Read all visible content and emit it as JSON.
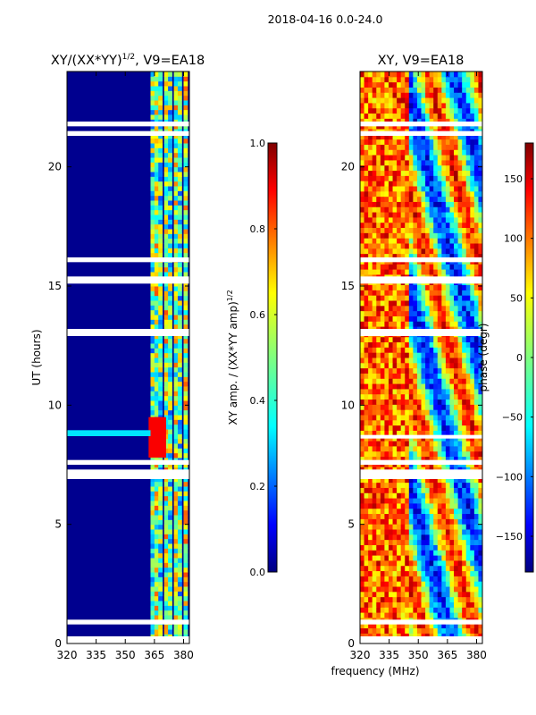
{
  "figure": {
    "suptitle": "2018-04-16 0.0-24.0",
    "shared_xlabel": "frequency (MHz)"
  },
  "chart_data": [
    {
      "type": "heatmap",
      "title": "XY/(XX*YY)",
      "title_sup": "1/2",
      "title_suffix": ", V9=EA18",
      "xlabel": "",
      "ylabel": "UT (hours)",
      "xlim": [
        320,
        383
      ],
      "ylim": [
        0,
        24
      ],
      "xticks": [
        320,
        335,
        350,
        365,
        380
      ],
      "yticks": [
        0,
        5,
        10,
        15,
        20
      ],
      "colorbar": {
        "label": "XY amp. / (XX*YY amp)",
        "label_sup": "1/2",
        "range": [
          0.0,
          1.0
        ],
        "ticks": [
          "0.0",
          "0.2",
          "0.4",
          "0.6",
          "0.8",
          "1.0"
        ],
        "tick_values": [
          0.0,
          0.2,
          0.4,
          0.6,
          0.8,
          1.0
        ],
        "colormap": "jet"
      },
      "flagged_ut_bands": [
        [
          0.0,
          0.3
        ],
        [
          0.8,
          1.0
        ],
        [
          6.9,
          7.3
        ],
        [
          7.5,
          7.7
        ],
        [
          12.9,
          13.2
        ],
        [
          15.1,
          15.4
        ],
        [
          16.0,
          16.2
        ],
        [
          21.3,
          21.5
        ],
        [
          21.7,
          21.9
        ]
      ]
    },
    {
      "type": "heatmap",
      "title": "XY, V9=EA18",
      "xlabel": "frequency (MHz)",
      "ylabel": "",
      "xlim": [
        320,
        383
      ],
      "ylim": [
        0,
        24
      ],
      "xticks": [
        320,
        335,
        350,
        365,
        380
      ],
      "yticks": [
        0,
        5,
        10,
        15,
        20
      ],
      "colorbar": {
        "label": "phase (degr)",
        "range": [
          -180,
          180
        ],
        "ticks": [
          "−150",
          "−100",
          "−50",
          "0",
          "50",
          "100",
          "150"
        ],
        "tick_values": [
          -150,
          -100,
          -50,
          0,
          50,
          100,
          150
        ],
        "colormap": "jet"
      },
      "flagged_ut_bands": [
        [
          0.0,
          0.3
        ],
        [
          0.8,
          1.0
        ],
        [
          6.9,
          7.3
        ],
        [
          7.5,
          7.7
        ],
        [
          8.6,
          8.75
        ],
        [
          12.9,
          13.2
        ],
        [
          15.1,
          15.4
        ],
        [
          16.0,
          16.2
        ],
        [
          21.3,
          21.5
        ],
        [
          21.7,
          21.9
        ]
      ]
    }
  ],
  "colors": {
    "jet_stops": [
      "#00007f",
      "#0000ff",
      "#007fff",
      "#00ffff",
      "#7fff7f",
      "#ffff00",
      "#ff7f00",
      "#ff0000",
      "#7f0000"
    ],
    "flag_color": "#ffffff",
    "frame_color": "#000000"
  }
}
